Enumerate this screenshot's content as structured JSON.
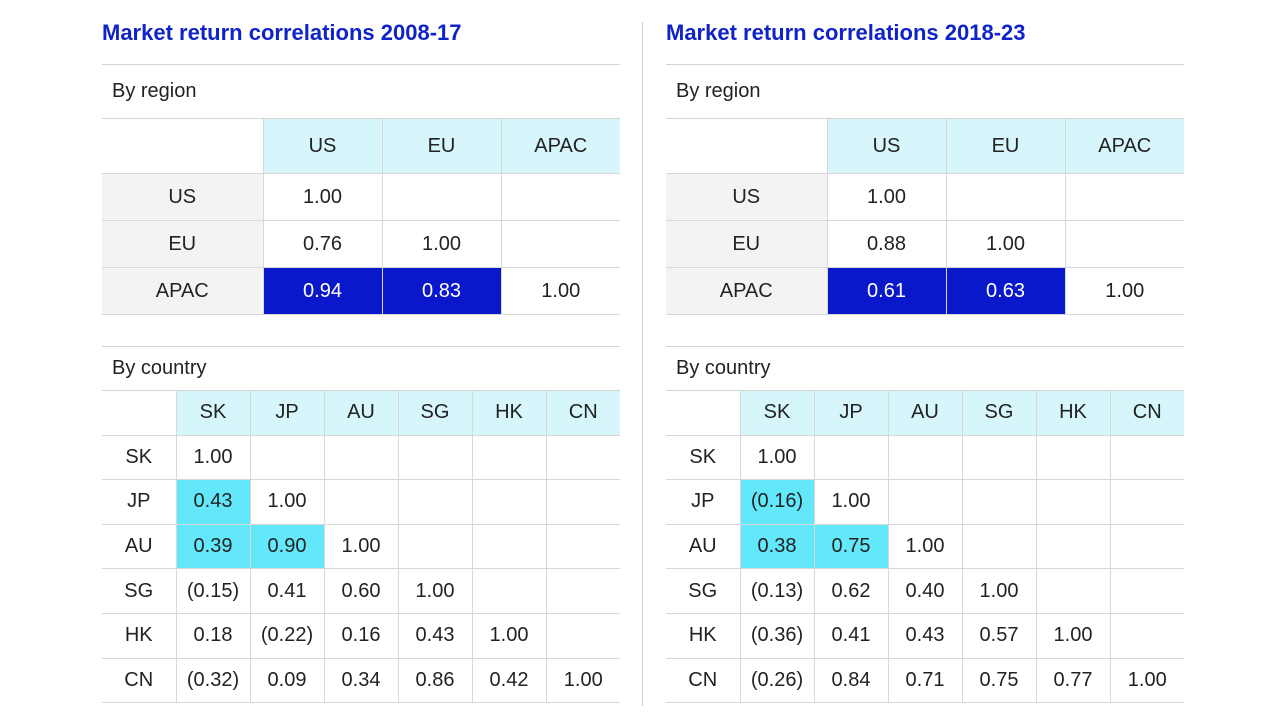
{
  "left": {
    "title": "Market return correlations 2008-17",
    "region": {
      "label": "By region",
      "columns": [
        "US",
        "EU",
        "APAC"
      ],
      "rows": [
        {
          "label": "US",
          "values": [
            "1.00",
            "",
            ""
          ]
        },
        {
          "label": "EU",
          "values": [
            "0.76",
            "1.00",
            ""
          ]
        },
        {
          "label": "APAC",
          "values": [
            "0.94",
            "0.83",
            "1.00"
          ]
        }
      ]
    },
    "country": {
      "label": "By country",
      "columns": [
        "SK",
        "JP",
        "AU",
        "SG",
        "HK",
        "CN"
      ],
      "rows": [
        {
          "label": "SK",
          "values": [
            "1.00",
            "",
            "",
            "",
            "",
            ""
          ]
        },
        {
          "label": "JP",
          "values": [
            "0.43",
            "1.00",
            "",
            "",
            "",
            ""
          ]
        },
        {
          "label": "AU",
          "values": [
            "0.39",
            "0.90",
            "1.00",
            "",
            "",
            ""
          ]
        },
        {
          "label": "SG",
          "values": [
            "(0.15)",
            "0.41",
            "0.60",
            "1.00",
            "",
            ""
          ]
        },
        {
          "label": "HK",
          "values": [
            "0.18",
            "(0.22)",
            "0.16",
            "0.43",
            "1.00",
            ""
          ]
        },
        {
          "label": "CN",
          "values": [
            "(0.32)",
            "0.09",
            "0.34",
            "0.86",
            "0.42",
            "1.00"
          ]
        }
      ]
    }
  },
  "right": {
    "title": "Market return correlations 2018-23",
    "region": {
      "label": "By region",
      "columns": [
        "US",
        "EU",
        "APAC"
      ],
      "rows": [
        {
          "label": "US",
          "values": [
            "1.00",
            "",
            ""
          ]
        },
        {
          "label": "EU",
          "values": [
            "0.88",
            "1.00",
            ""
          ]
        },
        {
          "label": "APAC",
          "values": [
            "0.61",
            "0.63",
            "1.00"
          ]
        }
      ]
    },
    "country": {
      "label": "By country",
      "columns": [
        "SK",
        "JP",
        "AU",
        "SG",
        "HK",
        "CN"
      ],
      "rows": [
        {
          "label": "SK",
          "values": [
            "1.00",
            "",
            "",
            "",
            "",
            ""
          ]
        },
        {
          "label": "JP",
          "values": [
            "(0.16)",
            "1.00",
            "",
            "",
            "",
            ""
          ]
        },
        {
          "label": "AU",
          "values": [
            "0.38",
            "0.75",
            "1.00",
            "",
            "",
            ""
          ]
        },
        {
          "label": "SG",
          "values": [
            "(0.13)",
            "0.62",
            "0.40",
            "1.00",
            "",
            ""
          ]
        },
        {
          "label": "HK",
          "values": [
            "(0.36)",
            "0.41",
            "0.43",
            "0.57",
            "1.00",
            ""
          ]
        },
        {
          "label": "CN",
          "values": [
            "(0.26)",
            "0.84",
            "0.71",
            "0.75",
            "0.77",
            "1.00"
          ]
        }
      ]
    }
  },
  "colors": {
    "title": "#1023c8",
    "header_cyan": "#d6f6fb",
    "highlight_dark_blue": "#0a18cc",
    "highlight_cyan": "#62e8fa",
    "row_label_gray": "#f3f3f3"
  }
}
